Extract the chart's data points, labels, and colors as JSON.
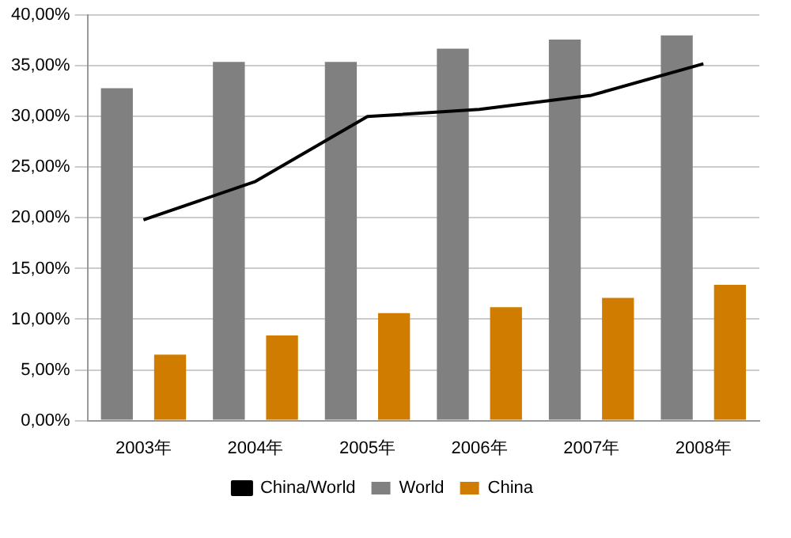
{
  "chart_data": {
    "type": "bar",
    "categories": [
      "2003年",
      "2004年",
      "2005年",
      "2006年",
      "2007年",
      "2008年"
    ],
    "series": [
      {
        "name": "World",
        "color": "#808080",
        "values": [
          32.8,
          35.4,
          35.4,
          36.7,
          37.6,
          38.0
        ]
      },
      {
        "name": "China",
        "color": "#d07c00",
        "values": [
          6.5,
          8.4,
          10.6,
          11.2,
          12.1,
          13.4
        ]
      },
      {
        "name": "China/World",
        "type": "line",
        "color": "#000000",
        "values": [
          19.8,
          23.6,
          30.0,
          30.7,
          32.1,
          35.2
        ]
      }
    ],
    "ylim": [
      0,
      40
    ],
    "yticks": [
      {
        "value": 0,
        "label": "0,00%"
      },
      {
        "value": 5,
        "label": "5,00%"
      },
      {
        "value": 10,
        "label": "10,00%"
      },
      {
        "value": 15,
        "label": "15,00%"
      },
      {
        "value": 20,
        "label": "20,00%"
      },
      {
        "value": 25,
        "label": "25,00%"
      },
      {
        "value": 30,
        "label": "30,00%"
      },
      {
        "value": 35,
        "label": "35,00%"
      },
      {
        "value": 40,
        "label": "40,00%"
      }
    ],
    "grid": "y",
    "legend": "bottom",
    "marker": "none"
  }
}
